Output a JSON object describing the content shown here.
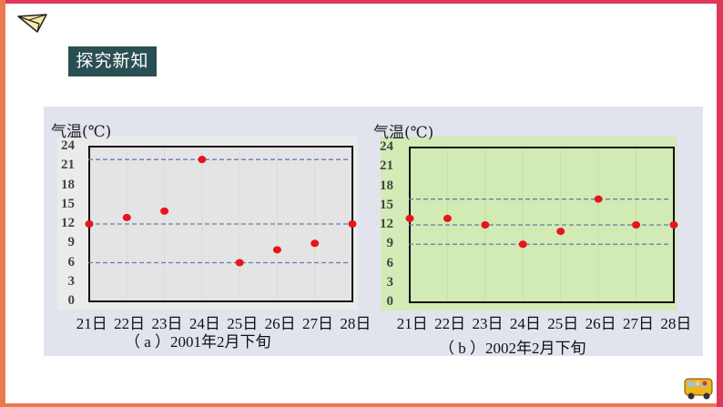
{
  "slide": {
    "section_title": "探究新知",
    "icons": {
      "top_left": "paper-plane-icon",
      "bottom_right": "school-bus-icon"
    },
    "colors": {
      "frame_top_right": "#e0365a",
      "frame_left_bottom": "#ea7a4e",
      "badge_bg": "#2a4f52",
      "panel_bg": "#e1e4ec",
      "point": "#e8141c",
      "dash": "#5b80b0"
    }
  },
  "chart_a": {
    "ylabel": "气温(℃)",
    "yticks": [
      "24",
      "21",
      "18",
      "15",
      "12",
      "9",
      "6",
      "3",
      "0"
    ],
    "xticks": [
      "21日",
      "22日",
      "23日",
      "24日",
      "25日",
      "26日",
      "27日",
      "28日"
    ],
    "caption": "（ a ）2001年2月下旬"
  },
  "chart_b": {
    "ylabel": "气温(℃)",
    "yticks": [
      "24",
      "21",
      "18",
      "15",
      "12",
      "9",
      "6",
      "3",
      "0"
    ],
    "xticks": [
      "21日",
      "22日",
      "23日",
      "24日",
      "25日",
      "26日",
      "27日",
      "28日"
    ],
    "caption": "（ b ）2002年2月下旬"
  },
  "chart_data": [
    {
      "type": "scatter",
      "title": "（a）2001年2月下旬",
      "xlabel": "",
      "ylabel": "气温(℃)",
      "categories": [
        "21日",
        "22日",
        "23日",
        "24日",
        "25日",
        "26日",
        "27日",
        "28日"
      ],
      "values": [
        12,
        13,
        14,
        22,
        6,
        8,
        9,
        12
      ],
      "ylim": [
        0,
        24
      ],
      "yticks": [
        0,
        3,
        6,
        9,
        12,
        15,
        18,
        21,
        24
      ],
      "reference_lines": [
        22,
        12,
        6
      ],
      "grid": false,
      "legend": null
    },
    {
      "type": "scatter",
      "title": "（b）2002年2月下旬",
      "xlabel": "",
      "ylabel": "气温(℃)",
      "categories": [
        "21日",
        "22日",
        "23日",
        "24日",
        "25日",
        "26日",
        "27日",
        "28日"
      ],
      "values": [
        13,
        13,
        12,
        9,
        11,
        16,
        12,
        12
      ],
      "ylim": [
        0,
        24
      ],
      "yticks": [
        0,
        3,
        6,
        9,
        12,
        15,
        18,
        21,
        24
      ],
      "reference_lines": [
        16,
        12,
        9
      ],
      "grid": false,
      "legend": null
    }
  ]
}
